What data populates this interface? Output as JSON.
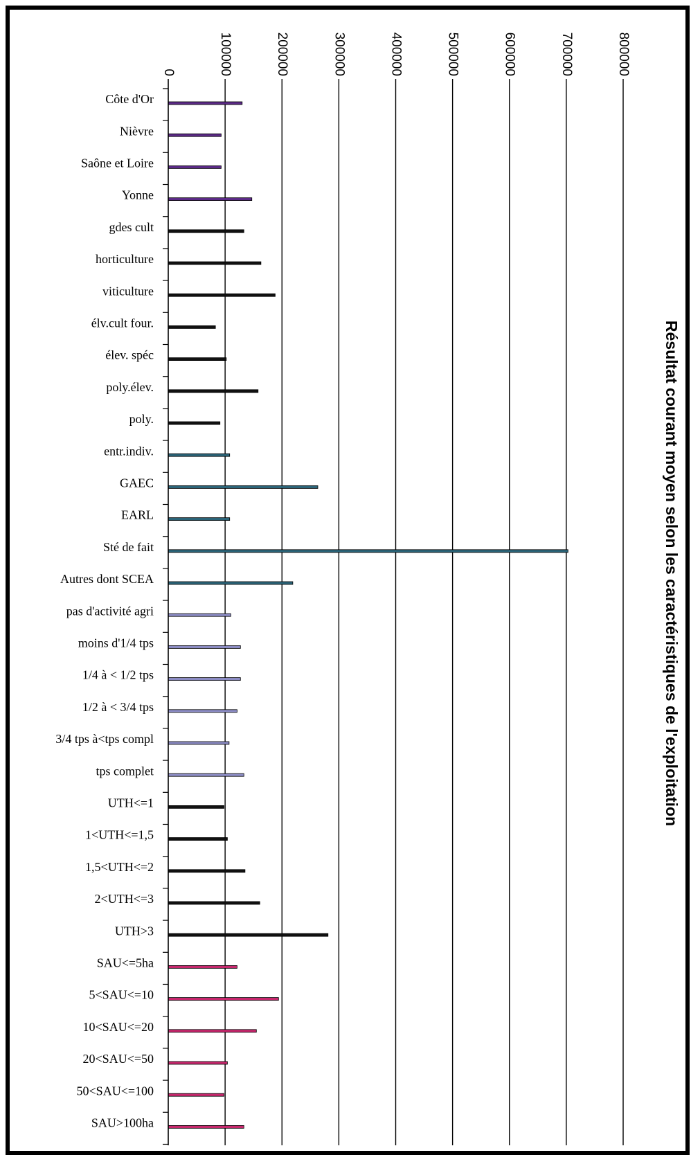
{
  "chart_data": {
    "type": "bar",
    "orientation": "horizontal",
    "title": "Résultat courant moyen selon les caractéristiques de l'exploitation",
    "xlim": [
      0,
      800000
    ],
    "ticks": [
      "0",
      "100000",
      "200000",
      "300000",
      "400000",
      "500000",
      "600000",
      "700000",
      "800000"
    ],
    "grid": true,
    "categories": [
      "Côte d'Or",
      "Nièvre",
      "Saône et Loire",
      "Yonne",
      "gdes cult",
      "horticulture",
      "viticulture",
      "élv.cult four.",
      "élev. spéc",
      "poly.élev.",
      "poly.",
      "entr.indiv.",
      "GAEC",
      "EARL",
      "Sté de fait",
      "Autres dont SCEA",
      "pas d'activité agri",
      "moins d'1/4 tps",
      "1/4 à < 1/2 tps",
      "1/2 à < 3/4 tps",
      "3/4 tps à<tps compl",
      "tps complet",
      "UTH<=1",
      "1<UTH<=1,5",
      "1,5<UTH<=2",
      "2<UTH<=3",
      "UTH>3",
      "SAU<=5ha",
      "5<SAU<=10",
      "10<SAU<=20",
      "20<SAU<=50",
      "50<SAU<=100",
      "SAU>100ha"
    ],
    "values": [
      130000,
      93000,
      93000,
      147000,
      133000,
      163000,
      188000,
      83000,
      102000,
      158000,
      91000,
      108000,
      263000,
      108000,
      703000,
      219000,
      110000,
      127000,
      127000,
      121000,
      107000,
      133000,
      98000,
      104000,
      135000,
      161000,
      281000,
      121000,
      194000,
      155000,
      104000,
      98000,
      133000
    ],
    "colors": [
      "#5b2a86",
      "#5b2a86",
      "#5b2a86",
      "#5b2a86",
      "#111111",
      "#111111",
      "#111111",
      "#111111",
      "#111111",
      "#111111",
      "#111111",
      "#2b6478",
      "#2b6478",
      "#2b6478",
      "#2b6478",
      "#2b6478",
      "#8c8cc4",
      "#8c8cc4",
      "#8c8cc4",
      "#8c8cc4",
      "#8c8cc4",
      "#8c8cc4",
      "#111111",
      "#111111",
      "#111111",
      "#111111",
      "#111111",
      "#c8286e",
      "#c8286e",
      "#c8286e",
      "#c8286e",
      "#c8286e",
      "#c8286e"
    ]
  }
}
